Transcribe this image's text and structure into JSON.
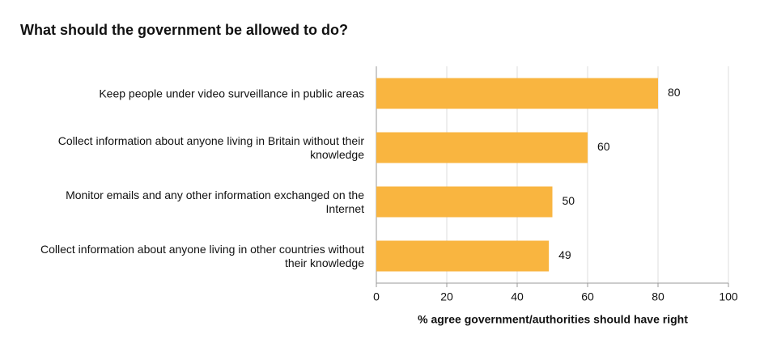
{
  "chart_data": {
    "type": "bar",
    "orientation": "horizontal",
    "title": "What should the government be allowed to do?",
    "x_label": "% agree government/authorities should have right",
    "categories": [
      "Keep people under video surveillance in public areas",
      "Collect information about anyone living in Britain without their knowledge",
      "Monitor emails and any other information exchanged on the Internet",
      "Collect information about anyone living in other countries without their knowledge"
    ],
    "values": [
      80,
      60,
      50,
      49
    ],
    "color": "#f9b540",
    "xlim": [
      0,
      100
    ],
    "xticks": [
      0,
      20,
      40,
      60,
      80,
      100
    ],
    "grid": true
  }
}
